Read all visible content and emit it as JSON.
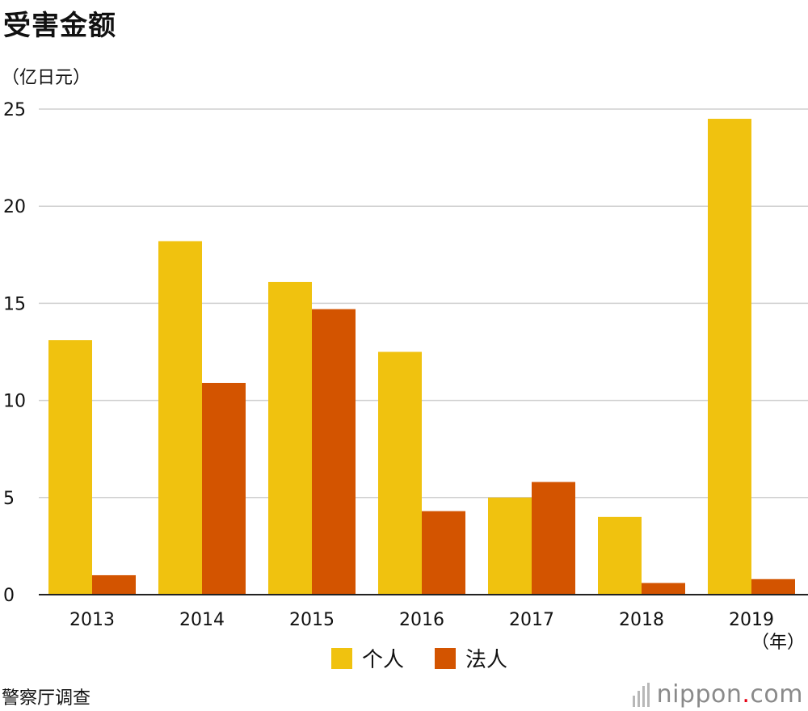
{
  "header": {
    "title": "受害金额",
    "unit": "（亿日元）"
  },
  "chart_data": {
    "type": "bar",
    "title": "受害金额",
    "ylabel": "（亿日元）",
    "xlabel": "（年）",
    "categories": [
      "2013",
      "2014",
      "2015",
      "2016",
      "2017",
      "2018",
      "2019"
    ],
    "series": [
      {
        "name": "个人",
        "color": "#f0c20f",
        "values": [
          13.1,
          18.2,
          16.1,
          12.5,
          5.0,
          4.0,
          24.5
        ]
      },
      {
        "name": "法人",
        "color": "#d35400",
        "values": [
          1.0,
          10.9,
          14.7,
          4.3,
          5.8,
          0.6,
          0.8
        ]
      }
    ],
    "ylim": [
      0,
      25
    ],
    "yticks": [
      0,
      5,
      10,
      15,
      20,
      25
    ],
    "grid": true,
    "legend_position": "bottom-center"
  },
  "footer": {
    "source": "警察厅调查",
    "logo_main": "nippon",
    "logo_dot": ".",
    "logo_tld": "com"
  }
}
